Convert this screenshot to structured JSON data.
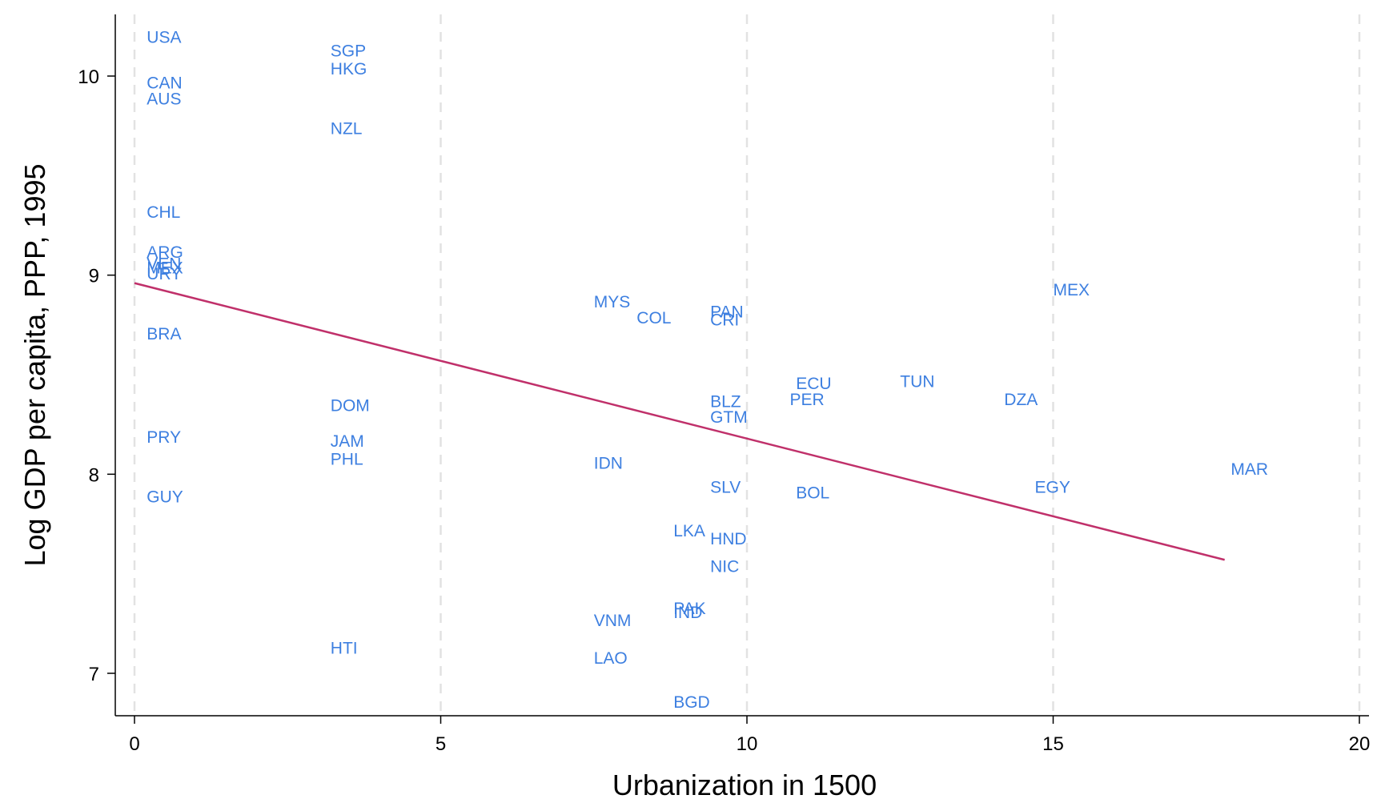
{
  "chart_data": {
    "type": "scatter",
    "title": "",
    "xlabel": "Urbanization in 1500",
    "ylabel": "Log GDP per capita, PPP, 1995",
    "xlim": [
      0,
      20
    ],
    "ylim": [
      6.8,
      10.3
    ],
    "xticks": [
      0,
      5,
      10,
      15,
      20
    ],
    "yticks": [
      7,
      8,
      9,
      10
    ],
    "grid": "vertical dashed at x ticks",
    "legend": "none",
    "colors": {
      "points": "#3d7fe0",
      "fit": "#c0306a",
      "grid": "#e2e2e2",
      "axis": "#000000"
    },
    "points": [
      {
        "label": "USA",
        "x": 0.2,
        "y": 10.2
      },
      {
        "label": "CAN",
        "x": 0.2,
        "y": 9.97
      },
      {
        "label": "AUS",
        "x": 0.2,
        "y": 9.89
      },
      {
        "label": "CHL",
        "x": 0.2,
        "y": 9.32
      },
      {
        "label": "ARG",
        "x": 0.2,
        "y": 9.12
      },
      {
        "label": "VEN",
        "x": 0.2,
        "y": 9.06
      },
      {
        "label": "MEX",
        "x": 0.2,
        "y": 9.04
      },
      {
        "label": "URY",
        "x": 0.2,
        "y": 9.01
      },
      {
        "label": "BRA",
        "x": 0.2,
        "y": 8.71
      },
      {
        "label": "PRY",
        "x": 0.2,
        "y": 8.19
      },
      {
        "label": "GUY",
        "x": 0.2,
        "y": 7.89
      },
      {
        "label": "SGP",
        "x": 3.2,
        "y": 10.13
      },
      {
        "label": "HKG",
        "x": 3.2,
        "y": 10.04
      },
      {
        "label": "NZL",
        "x": 3.2,
        "y": 9.74
      },
      {
        "label": "DOM",
        "x": 3.2,
        "y": 8.35
      },
      {
        "label": "JAM",
        "x": 3.2,
        "y": 8.17
      },
      {
        "label": "PHL",
        "x": 3.2,
        "y": 8.08
      },
      {
        "label": "HTI",
        "x": 3.2,
        "y": 7.13
      },
      {
        "label": "MYS",
        "x": 7.5,
        "y": 8.87
      },
      {
        "label": "COL",
        "x": 8.2,
        "y": 8.79
      },
      {
        "label": "IDN",
        "x": 7.5,
        "y": 8.06
      },
      {
        "label": "VNM",
        "x": 7.5,
        "y": 7.27
      },
      {
        "label": "LAO",
        "x": 7.5,
        "y": 7.08
      },
      {
        "label": "LKA",
        "x": 8.8,
        "y": 7.72
      },
      {
        "label": "PAK",
        "x": 8.8,
        "y": 7.33
      },
      {
        "label": "IND",
        "x": 8.8,
        "y": 7.31
      },
      {
        "label": "BGD",
        "x": 8.8,
        "y": 6.86
      },
      {
        "label": "PAN",
        "x": 9.4,
        "y": 8.82
      },
      {
        "label": "CRI",
        "x": 9.4,
        "y": 8.78
      },
      {
        "label": "BLZ",
        "x": 9.4,
        "y": 8.37
      },
      {
        "label": "GTM",
        "x": 9.4,
        "y": 8.29
      },
      {
        "label": "SLV",
        "x": 9.4,
        "y": 7.94
      },
      {
        "label": "HND",
        "x": 9.4,
        "y": 7.68
      },
      {
        "label": "NIC",
        "x": 9.4,
        "y": 7.54
      },
      {
        "label": "ECU",
        "x": 10.8,
        "y": 8.46
      },
      {
        "label": "PER",
        "x": 10.7,
        "y": 8.38
      },
      {
        "label": "BOL",
        "x": 10.8,
        "y": 7.91
      },
      {
        "label": "TUN",
        "x": 12.5,
        "y": 8.47
      },
      {
        "label": "DZA",
        "x": 14.2,
        "y": 8.38
      },
      {
        "label": "MEX",
        "x": 15.0,
        "y": 8.93
      },
      {
        "label": "EGY",
        "x": 14.7,
        "y": 7.94
      },
      {
        "label": "MAR",
        "x": 17.9,
        "y": 8.03
      }
    ],
    "fit_line": {
      "x": [
        0,
        17.8
      ],
      "y": [
        8.96,
        7.57
      ]
    }
  }
}
